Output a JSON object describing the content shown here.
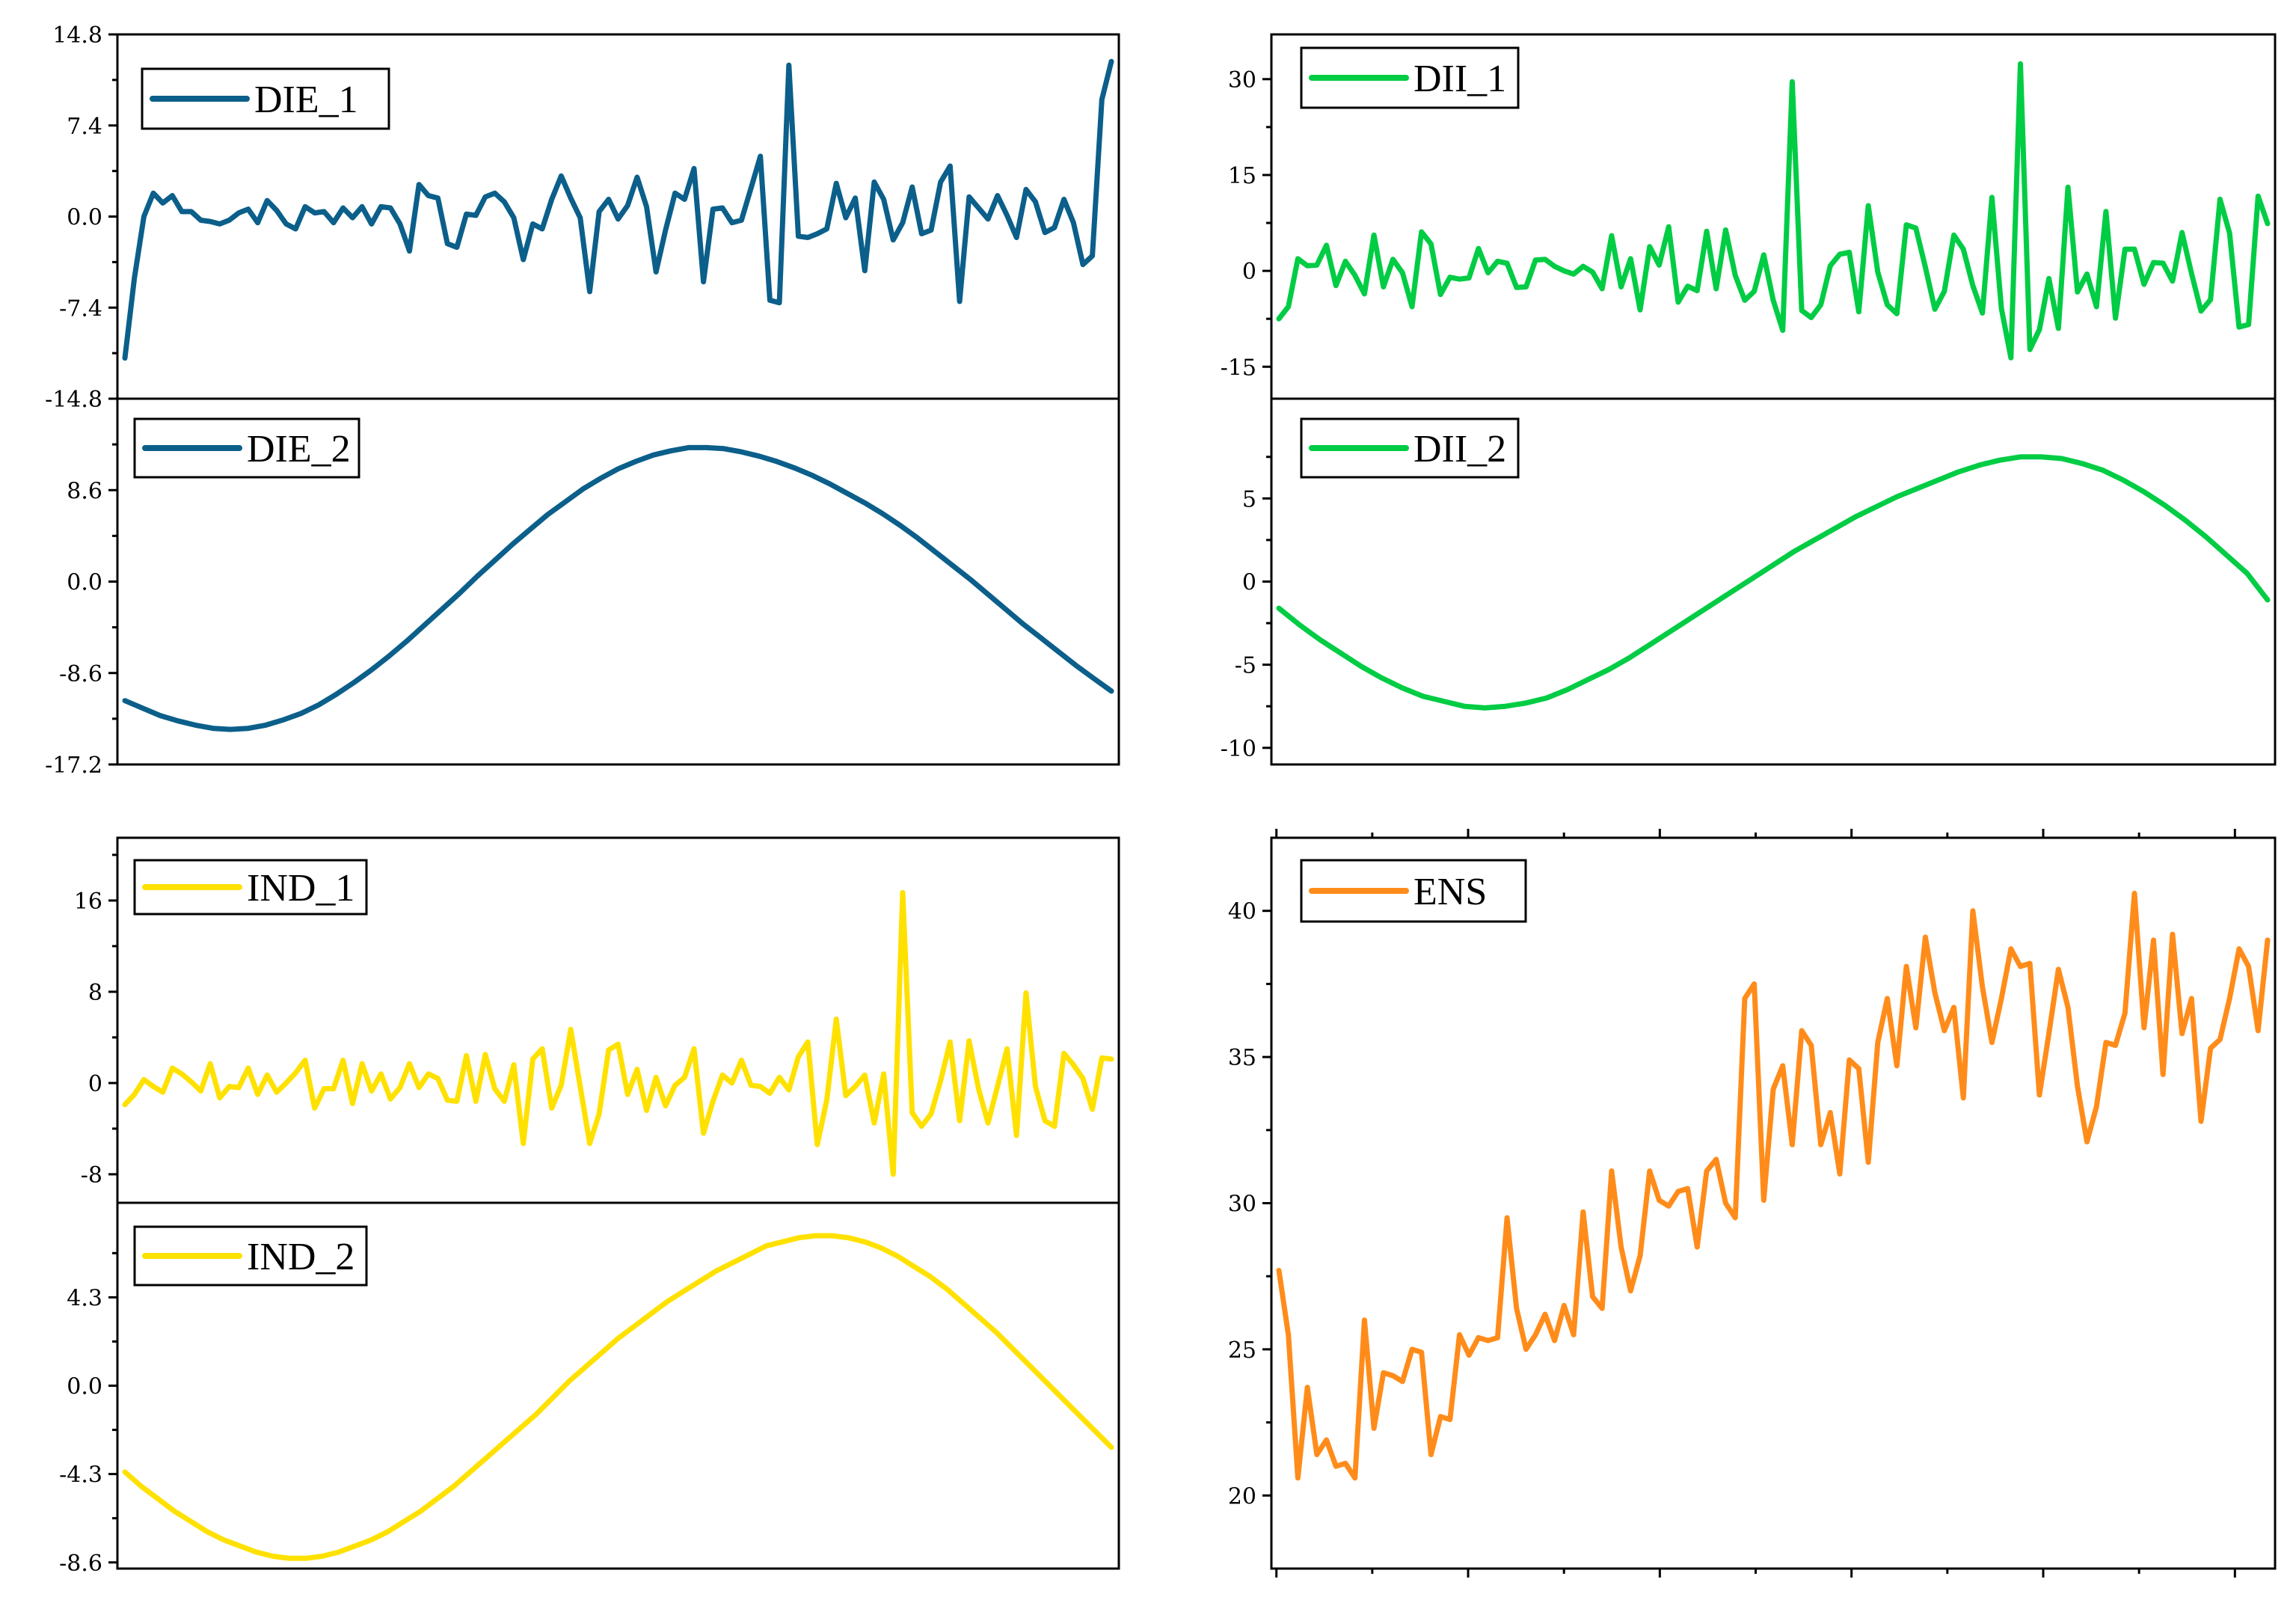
{
  "chart_data": [
    {
      "id": "die1",
      "type": "line",
      "series": [
        {
          "name": "DIE_1",
          "color": "#0b5f8a",
          "values": [
            -11.5,
            -5,
            0,
            1.9,
            1.1,
            1.7,
            0.4,
            0.4,
            -0.3,
            -0.4,
            -0.6,
            -0.3,
            0.3,
            0.6,
            -0.5,
            1.3,
            0.5,
            -0.6,
            -1,
            0.8,
            0.3,
            0.4,
            -0.5,
            0.7,
            -0.1,
            0.8,
            -0.6,
            0.8,
            0.7,
            -0.6,
            -2.8,
            2.6,
            1.7,
            1.5,
            -2.2,
            -2.5,
            0.2,
            0.1,
            1.6,
            1.9,
            1.2,
            -0.1,
            -3.5,
            -0.6,
            -1,
            1.4,
            3.3,
            1.5,
            -0.1,
            -6.1,
            0.4,
            1.4,
            -0.2,
            0.9,
            3.2,
            0.8,
            -4.5,
            -1.1,
            1.9,
            1.4,
            3.9,
            -5.3,
            0.6,
            0.7,
            -0.5,
            -0.3,
            2.3,
            4.9,
            -6.8,
            -7,
            12.3,
            -1.6,
            -1.7,
            -1.4,
            -1,
            2.7,
            -0.1,
            1.5,
            -4.4,
            2.8,
            1.4,
            -1.9,
            -0.5,
            2.4,
            -1.4,
            -1.1,
            2.8,
            4.1,
            -6.9,
            1.6,
            0.7,
            -0.2,
            1.7,
            0.1,
            -1.7,
            2.2,
            1.2,
            -1.3,
            -0.9,
            1.4,
            -0.5,
            -3.9,
            -3.2,
            9.5,
            12.6
          ]
        }
      ],
      "ylim": [
        -14.8,
        14.8
      ],
      "yticks": [
        "14.8",
        "7.4",
        "0.0",
        "-7.4",
        "-14.8"
      ]
    },
    {
      "id": "die2",
      "type": "line",
      "series": [
        {
          "name": "DIE_2",
          "color": "#0b5f8a",
          "values": [
            -11.2,
            -11.9,
            -12.6,
            -13.1,
            -13.5,
            -13.8,
            -13.9,
            -13.8,
            -13.5,
            -13,
            -12.4,
            -11.6,
            -10.6,
            -9.5,
            -8.3,
            -7,
            -5.6,
            -4.1,
            -2.6,
            -1.1,
            0.5,
            2,
            3.5,
            4.9,
            6.3,
            7.5,
            8.7,
            9.7,
            10.6,
            11.3,
            11.9,
            12.3,
            12.6,
            12.6,
            12.5,
            12.2,
            11.8,
            11.3,
            10.7,
            10,
            9.2,
            8.3,
            7.4,
            6.4,
            5.3,
            4.1,
            2.8,
            1.5,
            0.2,
            -1.2,
            -2.6,
            -4,
            -5.3,
            -6.6,
            -7.9,
            -9.1,
            -10.3
          ]
        }
      ],
      "ylim": [
        -17.2,
        17.2
      ],
      "yticks": [
        "8.6",
        "0.0",
        "-8.6",
        "-17.2"
      ]
    },
    {
      "id": "dii1",
      "type": "line",
      "series": [
        {
          "name": "DII_1",
          "color": "#00cc44",
          "values": [
            -7.5,
            -5.6,
            1.9,
            0.8,
            0.9,
            4,
            -2.3,
            1.5,
            -0.7,
            -3.6,
            5.6,
            -2.5,
            1.8,
            -0.3,
            -5.6,
            6.1,
            4.2,
            -3.7,
            -1,
            -1.3,
            -1.1,
            3.5,
            -0.3,
            1.5,
            1.2,
            -2.6,
            -2.5,
            1.7,
            1.8,
            0.7,
            0,
            -0.5,
            0.7,
            -0.2,
            -2.8,
            5.5,
            -2.5,
            1.9,
            -6.1,
            3.8,
            0.9,
            6.9,
            -4.9,
            -2.4,
            -3.1,
            6.2,
            -2.8,
            6.4,
            -0.7,
            -4.6,
            -3.2,
            2.5,
            -4.6,
            -9.3,
            29.6,
            -6.2,
            -7.3,
            -5.3,
            0.8,
            2.6,
            2.9,
            -6.4,
            10.2,
            -0.2,
            -5.3,
            -6.7,
            7.2,
            6.7,
            0.6,
            -6,
            -3.2,
            5.6,
            3.4,
            -2.3,
            -6.6,
            11.5,
            -5.9,
            -13.6,
            32.4,
            -12.3,
            -9.2,
            -1.2,
            -9,
            13.1,
            -3.3,
            -0.5,
            -5.6,
            9.3,
            -7.4,
            3.4,
            3.4,
            -2.1,
            1.3,
            1.2,
            -1.6,
            6,
            -0.4,
            -6.3,
            -4.5,
            11.2,
            5.9,
            -8.8,
            -8.4,
            11.7,
            7.4
          ]
        }
      ],
      "ylim": [
        -20,
        37
      ],
      "yticks": [
        "30",
        "15",
        "0",
        "-15"
      ]
    },
    {
      "id": "dii2",
      "type": "line",
      "series": [
        {
          "name": "DII_2",
          "color": "#00cc44",
          "values": [
            -1.6,
            -2.6,
            -3.5,
            -4.3,
            -5.1,
            -5.8,
            -6.4,
            -6.9,
            -7.2,
            -7.5,
            -7.6,
            -7.5,
            -7.3,
            -7,
            -6.5,
            -5.9,
            -5.3,
            -4.6,
            -3.8,
            -3,
            -2.2,
            -1.4,
            -0.6,
            0.2,
            1,
            1.8,
            2.5,
            3.2,
            3.9,
            4.5,
            5.1,
            5.6,
            6.1,
            6.6,
            7,
            7.3,
            7.5,
            7.5,
            7.4,
            7.1,
            6.7,
            6.1,
            5.4,
            4.6,
            3.7,
            2.7,
            1.6,
            0.5,
            -1.1
          ]
        }
      ],
      "ylim": [
        -11,
        11
      ],
      "yticks": [
        "5",
        "0",
        "-5",
        "-10"
      ]
    },
    {
      "id": "ind1",
      "type": "line",
      "series": [
        {
          "name": "IND_1",
          "color": "#ffe100",
          "values": [
            -1.9,
            -1,
            0.3,
            -0.3,
            -0.8,
            1.3,
            0.8,
            0.1,
            -0.7,
            1.7,
            -1.3,
            -0.3,
            -0.4,
            1.3,
            -1,
            0.7,
            -0.8,
            0,
            0.9,
            2,
            -2.2,
            -0.5,
            -0.5,
            2,
            -1.8,
            1.7,
            -0.7,
            0.8,
            -1.4,
            -0.4,
            1.7,
            -0.4,
            0.8,
            0.4,
            -1.5,
            -1.6,
            2.4,
            -1.6,
            2.5,
            -0.5,
            -1.6,
            1.6,
            -5.3,
            2.1,
            3,
            -2.2,
            -0.2,
            4.7,
            -0.3,
            -5.3,
            -2.7,
            2.9,
            3.4,
            -1,
            1.2,
            -2.4,
            0.5,
            -2,
            -0.2,
            0.5,
            3,
            -4.4,
            -1.6,
            0.7,
            0,
            2,
            -0.2,
            -0.3,
            -0.9,
            0.5,
            -0.6,
            2.3,
            3.6,
            -5.4,
            -1.5,
            5.6,
            -1.1,
            -0.3,
            0.7,
            -3.5,
            0.8,
            -8,
            16.7,
            -2.6,
            -3.8,
            -2.7,
            0.2,
            3.6,
            -3.3,
            3.7,
            -0.5,
            -3.5,
            -0.3,
            3,
            -4.6,
            7.9,
            -0.3,
            -3.3,
            -3.8,
            2.6,
            1.6,
            0.4,
            -2.3,
            2.2,
            2.1
          ]
        }
      ],
      "ylim": [
        -10.5,
        21.5
      ],
      "yticks": [
        "16",
        "8",
        "0",
        "-8"
      ]
    },
    {
      "id": "ind2",
      "type": "line",
      "series": [
        {
          "name": "IND_2",
          "color": "#ffe100",
          "values": [
            -4.2,
            -4.9,
            -5.5,
            -6.1,
            -6.6,
            -7.1,
            -7.5,
            -7.8,
            -8.1,
            -8.3,
            -8.4,
            -8.4,
            -8.3,
            -8.1,
            -7.8,
            -7.5,
            -7.1,
            -6.6,
            -6.1,
            -5.5,
            -4.9,
            -4.2,
            -3.5,
            -2.8,
            -2.1,
            -1.4,
            -0.6,
            0.2,
            0.9,
            1.6,
            2.3,
            2.9,
            3.5,
            4.1,
            4.6,
            5.1,
            5.6,
            6,
            6.4,
            6.8,
            7,
            7.2,
            7.3,
            7.3,
            7.2,
            7,
            6.7,
            6.3,
            5.8,
            5.3,
            4.7,
            4,
            3.3,
            2.6,
            1.8,
            1,
            0.2,
            -0.6,
            -1.4,
            -2.2,
            -3
          ]
        }
      ],
      "ylim": [
        -8.9,
        8.9
      ],
      "yticks": [
        "4.3",
        "0.0",
        "-4.3",
        "-8.6"
      ]
    },
    {
      "id": "ens",
      "type": "line",
      "series": [
        {
          "name": "ENS",
          "color": "#ff8c1a",
          "values": [
            27.7,
            25.5,
            20.6,
            23.7,
            21.4,
            21.9,
            21,
            21.1,
            20.6,
            26,
            22.3,
            24.2,
            24.1,
            23.9,
            25,
            24.9,
            21.4,
            22.7,
            22.6,
            25.5,
            24.8,
            25.4,
            25.3,
            25.4,
            29.5,
            26.4,
            25,
            25.5,
            26.2,
            25.3,
            26.5,
            25.5,
            29.7,
            26.8,
            26.4,
            31.1,
            28.5,
            27,
            28.2,
            31.1,
            30.1,
            29.9,
            30.4,
            30.5,
            28.5,
            31.1,
            31.5,
            30,
            29.5,
            37,
            37.5,
            30.1,
            33.9,
            34.7,
            32,
            35.9,
            35.4,
            32,
            33.1,
            31,
            34.9,
            34.6,
            31.4,
            35.5,
            37,
            34.7,
            38.1,
            36,
            39.1,
            37.2,
            35.9,
            36.7,
            33.6,
            40,
            37.4,
            35.5,
            37,
            38.7,
            38.1,
            38.2,
            33.7,
            35.8,
            38,
            36.7,
            34,
            32.1,
            33.3,
            35.5,
            35.4,
            36.5,
            40.6,
            36,
            39,
            34.4,
            39.2,
            35.8,
            37,
            32.8,
            35.3,
            35.6,
            37,
            38.7,
            38.1,
            35.9,
            39
          ]
        }
      ],
      "ylim": [
        17.5,
        42.5
      ],
      "yticks": [
        "40",
        "35",
        "30",
        "25",
        "20"
      ]
    }
  ]
}
